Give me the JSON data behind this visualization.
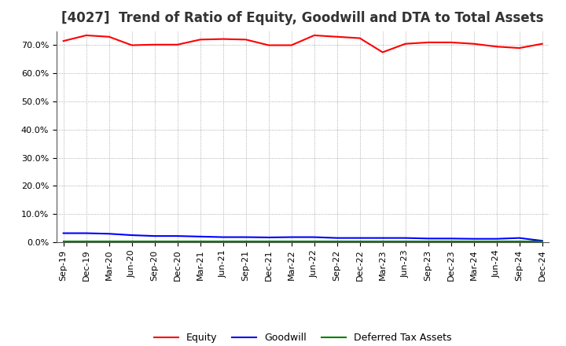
{
  "title": "[4027]  Trend of Ratio of Equity, Goodwill and DTA to Total Assets",
  "x_labels": [
    "Sep-19",
    "Dec-19",
    "Mar-20",
    "Jun-20",
    "Sep-20",
    "Dec-20",
    "Mar-21",
    "Jun-21",
    "Sep-21",
    "Dec-21",
    "Mar-22",
    "Jun-22",
    "Sep-22",
    "Dec-22",
    "Mar-23",
    "Jun-23",
    "Sep-23",
    "Dec-23",
    "Mar-24",
    "Jun-24",
    "Sep-24",
    "Dec-24"
  ],
  "equity": [
    71.5,
    73.5,
    73.0,
    70.0,
    70.2,
    70.2,
    72.0,
    72.2,
    72.0,
    70.0,
    70.0,
    73.5,
    73.0,
    72.5,
    67.5,
    70.5,
    71.0,
    71.0,
    70.5,
    69.5,
    69.0,
    70.5
  ],
  "goodwill": [
    3.2,
    3.2,
    3.0,
    2.5,
    2.2,
    2.2,
    2.0,
    1.8,
    1.8,
    1.7,
    1.8,
    1.8,
    1.5,
    1.5,
    1.5,
    1.5,
    1.3,
    1.3,
    1.2,
    1.2,
    1.5,
    0.5
  ],
  "dta": [
    0.3,
    0.3,
    0.3,
    0.3,
    0.3,
    0.3,
    0.3,
    0.3,
    0.3,
    0.3,
    0.3,
    0.3,
    0.3,
    0.3,
    0.3,
    0.3,
    0.3,
    0.3,
    0.3,
    0.3,
    0.3,
    0.3
  ],
  "equity_color": "#FF0000",
  "goodwill_color": "#0000FF",
  "dta_color": "#008000",
  "ylim": [
    0,
    75
  ],
  "yticks": [
    0,
    10,
    20,
    30,
    40,
    50,
    60,
    70
  ],
  "ytick_labels": [
    "0.0%",
    "10.0%",
    "20.0%",
    "30.0%",
    "40.0%",
    "50.0%",
    "60.0%",
    "70.0%"
  ],
  "legend_labels": [
    "Equity",
    "Goodwill",
    "Deferred Tax Assets"
  ],
  "background_color": "#FFFFFF",
  "plot_bg_color": "#FFFFFF",
  "grid_color": "#999999",
  "title_fontsize": 12,
  "tick_fontsize": 8,
  "legend_fontsize": 9
}
